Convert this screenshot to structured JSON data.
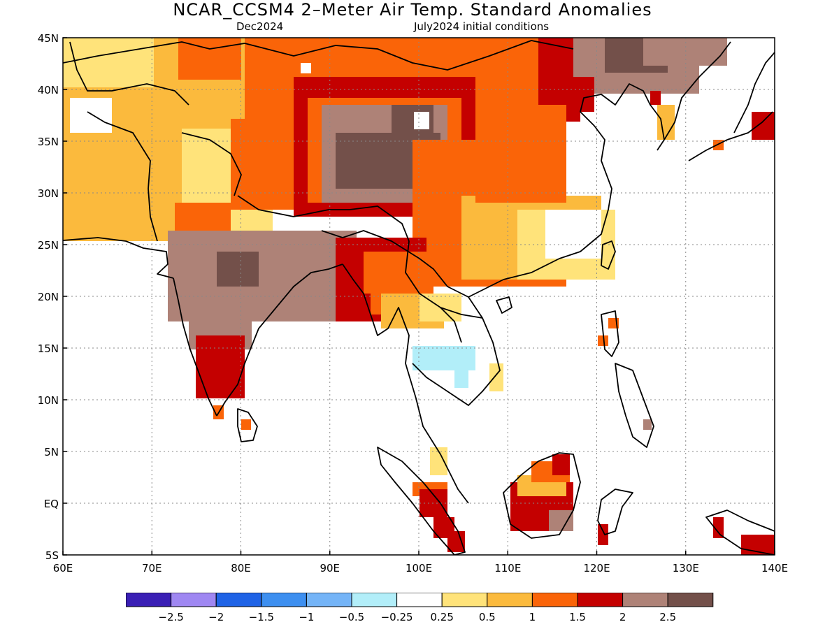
{
  "title": "NCAR_CCSM4 2–Meter Air Temp. Standard Anomalies",
  "valid_label": "Dec2024",
  "init_label": "July2024 initial conditions",
  "map": {
    "projection": "lat-lon",
    "lon_range": [
      60,
      140
    ],
    "lat_range": [
      -5,
      45
    ],
    "x_ticks": [
      "60E",
      "70E",
      "80E",
      "90E",
      "100E",
      "110E",
      "120E",
      "130E",
      "140E"
    ],
    "y_ticks": [
      "45N",
      "40N",
      "35N",
      "30N",
      "25N",
      "20N",
      "15N",
      "10N",
      "5N",
      "EQ",
      "5S"
    ],
    "grid": "dotted"
  },
  "colorbar": {
    "colors": [
      "#3a1fb5",
      "#9f87f2",
      "#1f63e6",
      "#3d8ff0",
      "#74b4f7",
      "#b2eef9",
      "#ffffff",
      "#ffe37a",
      "#fbba3d",
      "#fa6408",
      "#c40000",
      "#ae8277",
      "#73504a"
    ],
    "labels": [
      "−2.5",
      "−2",
      "−1.5",
      "−1",
      "−0.5",
      "−0.25",
      "0.25",
      "0.5",
      "1",
      "1.5",
      "2",
      "2.5"
    ]
  }
}
